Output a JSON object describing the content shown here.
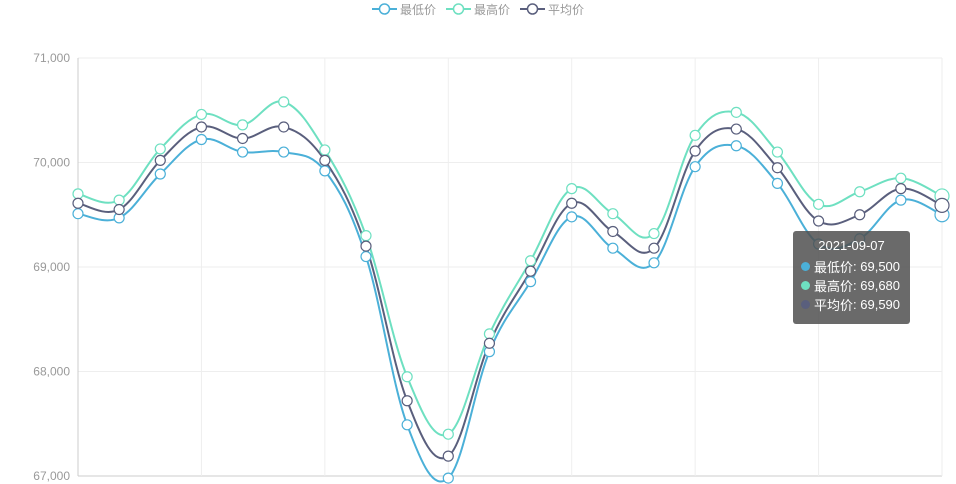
{
  "legend": [
    {
      "label": "最低价",
      "color": "#4bb0d8"
    },
    {
      "label": "最高价",
      "color": "#6ee0c1"
    },
    {
      "label": "平均价",
      "color": "#5a5f7d"
    }
  ],
  "tooltip": {
    "title": "2021-09-07",
    "rows": [
      {
        "label": "最低价",
        "value": "69,500",
        "color": "#4bb0d8"
      },
      {
        "label": "最高价",
        "value": "69,680",
        "color": "#6ee0c1"
      },
      {
        "label": "平均价",
        "value": "69,590",
        "color": "#5a5f7d"
      }
    ]
  },
  "chart_data": {
    "type": "line",
    "smooth": true,
    "ylim": [
      67000,
      71000
    ],
    "yticks": [
      67000,
      68000,
      69000,
      70000,
      71000
    ],
    "ytick_labels": [
      "67,000",
      "68,000",
      "69,000",
      "70,000",
      "71,000"
    ],
    "highlighted_index": 21,
    "grid": true,
    "legend_position": "top-center",
    "series": [
      {
        "name": "最低价",
        "color": "#4bb0d8",
        "values": [
          69510,
          69470,
          69890,
          70220,
          70100,
          70100,
          69920,
          69100,
          67490,
          66980,
          68190,
          68860,
          69480,
          69180,
          69040,
          69960,
          70160,
          69800,
          69220,
          69270,
          69640,
          69500
        ]
      },
      {
        "name": "最高价",
        "color": "#6ee0c1",
        "values": [
          69700,
          69640,
          70130,
          70460,
          70360,
          70580,
          70120,
          69300,
          67950,
          67400,
          68360,
          69060,
          69750,
          69510,
          69320,
          70260,
          70480,
          70100,
          69600,
          69720,
          69850,
          69680
        ]
      },
      {
        "name": "平均价",
        "color": "#5a5f7d",
        "values": [
          69610,
          69550,
          70020,
          70340,
          70230,
          70340,
          70020,
          69200,
          67720,
          67190,
          68270,
          68960,
          69610,
          69340,
          69180,
          70110,
          70320,
          69950,
          69440,
          69500,
          69750,
          69590
        ]
      }
    ]
  }
}
